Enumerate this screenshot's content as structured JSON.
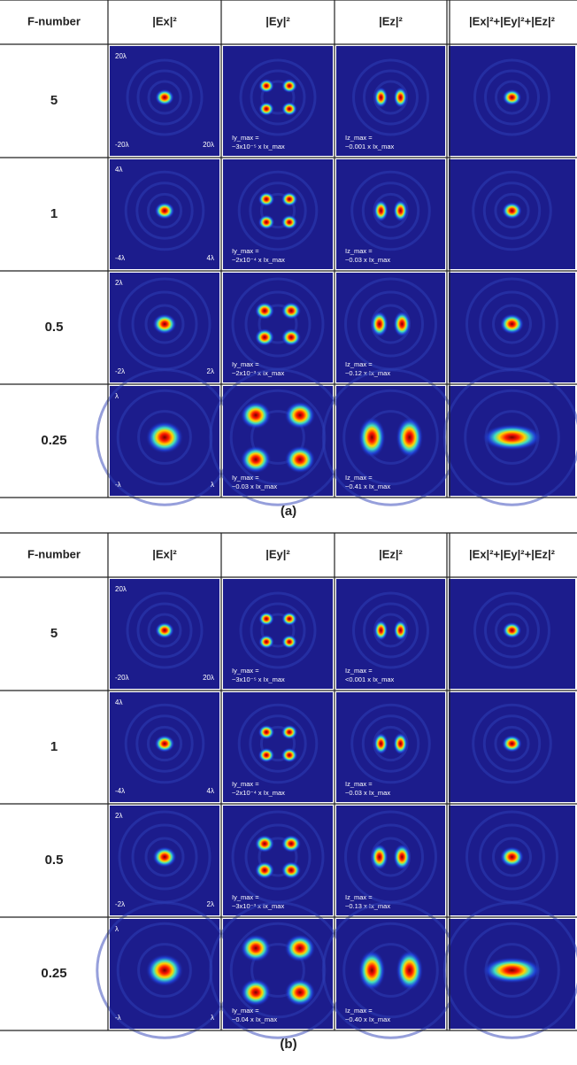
{
  "panels": [
    {
      "label": "(a)",
      "header": [
        "F-number",
        "|Ex|²",
        "|Ey|²",
        "|Ez|²",
        "|Ex|²+|Ey|²+|Ez|²"
      ],
      "rows": [
        {
          "f_number": "5",
          "ex_labels": [
            "20λ",
            "-20λ",
            "20λ"
          ],
          "ey_note": [
            "Iy_max =",
            "~3x10⁻⁵ x Ix_max"
          ],
          "ez_note": [
            "Iz_max =",
            "~0.001 x Ix_max"
          ]
        },
        {
          "f_number": "1",
          "ex_labels": [
            "4λ",
            "-4λ",
            "4λ"
          ],
          "ey_note": [
            "Iy_max =",
            "~2x10⁻⁴ x Ix_max"
          ],
          "ez_note": [
            "Iz_max =",
            "~0.03 x Ix_max"
          ]
        },
        {
          "f_number": "0.5",
          "ex_labels": [
            "2λ",
            "-2λ",
            "2λ"
          ],
          "ey_note": [
            "Iy_max =",
            "~2x10⁻³ x Ix_max"
          ],
          "ez_note": [
            "Iz_max =",
            "~0.12 x Ix_max"
          ]
        },
        {
          "f_number": "0.25",
          "ex_labels": [
            "λ",
            "-λ",
            "λ"
          ],
          "ey_note": [
            "Iy_max =",
            "~0.03 x Ix_max"
          ],
          "ez_note": [
            "Iz_max =",
            "~0.41 x Ix_max"
          ]
        }
      ]
    },
    {
      "label": "(b)",
      "header": [
        "F-number",
        "|Ex|²",
        "|Ey|²",
        "|Ez|²",
        "|Ex|²+|Ey|²+|Ez|²"
      ],
      "rows": [
        {
          "f_number": "5",
          "ex_labels": [
            "20λ",
            "-20λ",
            "20λ"
          ],
          "ey_note": [
            "Iy_max =",
            "~3x10⁻⁵ x Ix_max"
          ],
          "ez_note": [
            "Iz_max =",
            "<0.001 x Ix_max"
          ]
        },
        {
          "f_number": "1",
          "ex_labels": [
            "4λ",
            "-4λ",
            "4λ"
          ],
          "ey_note": [
            "Iy_max =",
            "~2x10⁻⁴ x Ix_max"
          ],
          "ez_note": [
            "Iz_max =",
            "~0.03 x Ix_max"
          ]
        },
        {
          "f_number": "0.5",
          "ex_labels": [
            "2λ",
            "-2λ",
            "2λ"
          ],
          "ey_note": [
            "Iy_max =",
            "~3x10⁻³ x Ix_max"
          ],
          "ez_note": [
            "Iz_max =",
            "~0.13 x Ix_max"
          ]
        },
        {
          "f_number": "0.25",
          "ex_labels": [
            "λ",
            "-λ",
            "λ"
          ],
          "ey_note": [
            "Iy_max =",
            "~0.04 x Ix_max"
          ],
          "ez_note": [
            "Iz_max =",
            "~0.40 x Ix_max"
          ]
        }
      ]
    }
  ]
}
